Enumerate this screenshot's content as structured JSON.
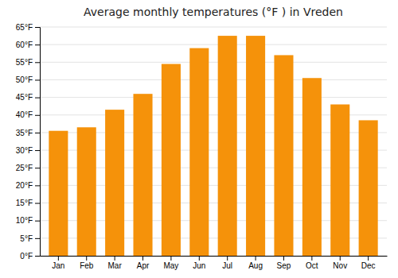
{
  "chart_data": {
    "type": "bar",
    "title": "Average monthly temperatures (°F ) in Vreden",
    "categories": [
      "Jan",
      "Feb",
      "Mar",
      "Apr",
      "May",
      "Jun",
      "Jul",
      "Aug",
      "Sep",
      "Oct",
      "Nov",
      "Dec"
    ],
    "values": [
      35.5,
      36.5,
      41.5,
      46.0,
      54.5,
      59.0,
      62.5,
      62.5,
      57.0,
      50.5,
      43.0,
      38.5
    ],
    "color": "#F5920A",
    "ylim": [
      0,
      65
    ],
    "yticks": [
      {
        "value": 0,
        "label": "0°F"
      },
      {
        "value": 5,
        "label": "5°F"
      },
      {
        "value": 10,
        "label": "10°F"
      },
      {
        "value": 15,
        "label": "15°F"
      },
      {
        "value": 20,
        "label": "20°F"
      },
      {
        "value": 25,
        "label": "25°F"
      },
      {
        "value": 30,
        "label": "30°F"
      },
      {
        "value": 35,
        "label": "35°F"
      },
      {
        "value": 40,
        "label": "40°F"
      },
      {
        "value": 45,
        "label": "45°F"
      },
      {
        "value": 50,
        "label": "50°F"
      },
      {
        "value": 55,
        "label": "55°F"
      },
      {
        "value": 60,
        "label": "60°F"
      },
      {
        "value": 65,
        "label": "65°F"
      }
    ],
    "grid": true
  }
}
